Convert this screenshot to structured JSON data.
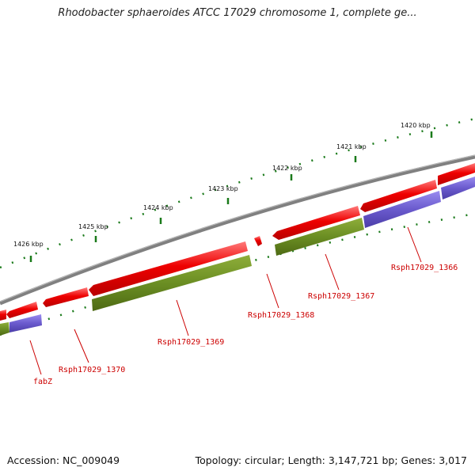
{
  "title": "Rhodobacter sphaeroides ATCC 17029 chromosome 1, complete ge...",
  "footer": {
    "accession": "Accession: NC_009049",
    "summary": "Topology: circular; Length: 3,147,721 bp; Genes: 3,017"
  },
  "kbp_labels": [
    "1420 kbp",
    "1421 kbp",
    "1422 kbp",
    "1423 kbp",
    "1424 kbp",
    "1425 kbp",
    "1426 kbp"
  ],
  "gene_labels": [
    "Rsph17029_1366",
    "Rsph17029_1367",
    "Rsph17029_1368",
    "Rsph17029_1369",
    "Rsph17029_1370",
    "fabZ"
  ],
  "colors": {
    "backbone": "#808080",
    "gene": "#ee0000",
    "cds_green": "#6b8e23",
    "cds_blue": "#6a5acd",
    "tick": "#1a7a1a",
    "label": "#cc0000"
  }
}
